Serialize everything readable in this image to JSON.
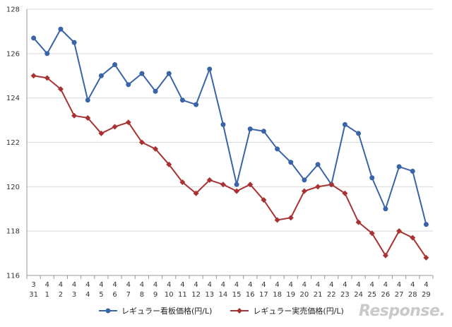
{
  "chart_data": {
    "type": "line",
    "x_top": [
      "3",
      "4",
      "4",
      "4",
      "4",
      "4",
      "4",
      "4",
      "4",
      "4",
      "4",
      "4",
      "4",
      "4",
      "4",
      "4",
      "4",
      "4",
      "4",
      "4",
      "4",
      "4",
      "4",
      "4",
      "4",
      "4",
      "4",
      "4",
      "4",
      "4"
    ],
    "x_bottom": [
      "31",
      "1",
      "2",
      "3",
      "4",
      "5",
      "6",
      "7",
      "8",
      "9",
      "10",
      "11",
      "12",
      "13",
      "14",
      "15",
      "16",
      "17",
      "18",
      "19",
      "20",
      "21",
      "22",
      "23",
      "24",
      "25",
      "26",
      "27",
      "28",
      "29"
    ],
    "ylim": [
      116,
      128
    ],
    "yticks": [
      "116",
      "118",
      "120",
      "122",
      "124",
      "126",
      "128"
    ],
    "grid": true,
    "legend_position": "bottom",
    "series": [
      {
        "name": "レギュラー看板価格(円/L)",
        "color": "#3a64a8",
        "marker": "circle",
        "values": [
          126.7,
          126.0,
          127.1,
          126.5,
          123.9,
          125.0,
          125.5,
          124.6,
          125.1,
          124.3,
          125.1,
          123.9,
          123.7,
          125.3,
          122.8,
          120.1,
          122.6,
          122.5,
          121.7,
          121.1,
          120.3,
          121.0,
          120.1,
          122.8,
          122.4,
          120.4,
          119.0,
          120.9,
          120.7,
          118.3
        ]
      },
      {
        "name": "レギュラー実売価格(円/L)",
        "color": "#a83232",
        "marker": "diamond",
        "values": [
          125.0,
          124.9,
          124.4,
          123.2,
          123.1,
          122.4,
          122.7,
          122.9,
          122.0,
          121.7,
          121.0,
          120.2,
          119.7,
          120.3,
          120.1,
          119.8,
          120.1,
          119.4,
          118.5,
          118.6,
          119.8,
          120.0,
          120.1,
          119.7,
          118.4,
          117.9,
          116.9,
          118.0,
          117.7,
          116.8
        ]
      }
    ]
  },
  "watermark": "Response."
}
